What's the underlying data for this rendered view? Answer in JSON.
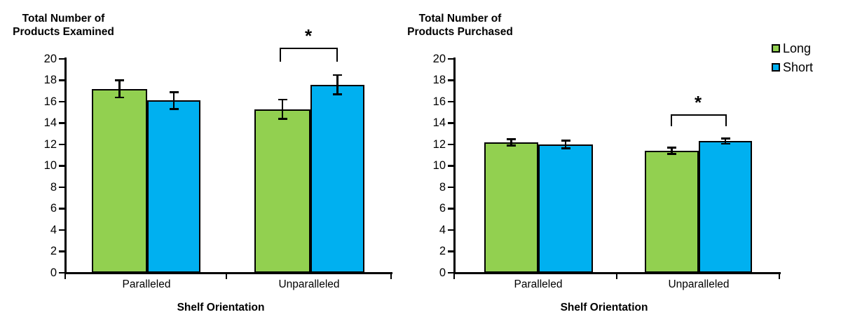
{
  "figure": {
    "legend": [
      {
        "label": "Long",
        "color": "#92D050"
      },
      {
        "label": "Short",
        "color": "#00B0F0"
      }
    ],
    "colors": {
      "axis": "#000000",
      "background": "#FFFFFF"
    }
  },
  "chart_data": [
    {
      "type": "bar",
      "title": "Total Number of\nProducts Examined",
      "xlabel": "Shelf Orientation",
      "categories": [
        "Paralleled",
        "Unparalleled"
      ],
      "series": [
        {
          "name": "Long",
          "color": "#92D050",
          "values": [
            17.2,
            15.3
          ],
          "errors": [
            0.8,
            0.9
          ]
        },
        {
          "name": "Short",
          "color": "#00B0F0",
          "values": [
            16.1,
            17.6
          ],
          "errors": [
            0.8,
            0.9
          ]
        }
      ],
      "ylim": [
        0,
        20
      ],
      "yticks": [
        0,
        2,
        4,
        6,
        8,
        10,
        12,
        14,
        16,
        18,
        20
      ],
      "grid": false,
      "error_bars": true,
      "legend_position": "top-right",
      "significance": {
        "label": "*",
        "category": "Unparalleled",
        "between": [
          "Long",
          "Short"
        ]
      }
    },
    {
      "type": "bar",
      "title": "Total Number of\nProducts Purchased",
      "xlabel": "Shelf Orientation",
      "categories": [
        "Paralleled",
        "Unparalleled"
      ],
      "series": [
        {
          "name": "Long",
          "color": "#92D050",
          "values": [
            12.2,
            11.4
          ],
          "errors": [
            0.3,
            0.3
          ]
        },
        {
          "name": "Short",
          "color": "#00B0F0",
          "values": [
            12.0,
            12.3
          ],
          "errors": [
            0.35,
            0.25
          ]
        }
      ],
      "ylim": [
        0,
        20
      ],
      "yticks": [
        0,
        2,
        4,
        6,
        8,
        10,
        12,
        14,
        16,
        18,
        20
      ],
      "grid": false,
      "error_bars": true,
      "significance": {
        "label": "*",
        "category": "Unparalleled",
        "between": [
          "Long",
          "Short"
        ]
      }
    }
  ]
}
